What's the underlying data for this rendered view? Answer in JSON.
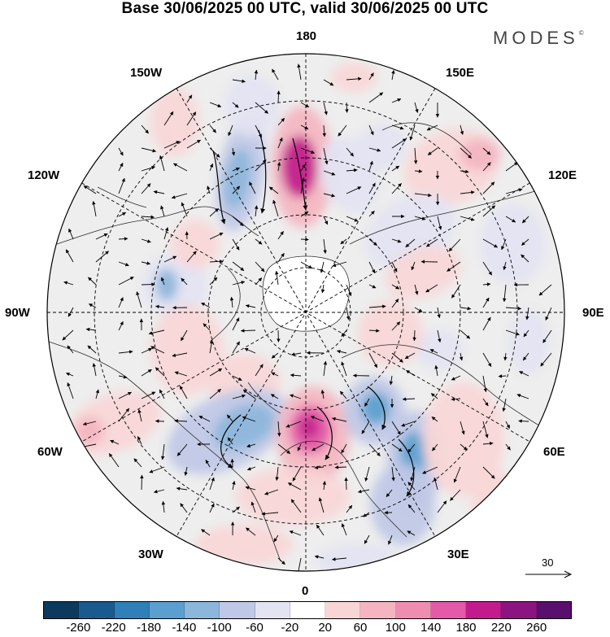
{
  "title": "Base 30/06/2025 00 UTC, valid 30/06/2025 00 UTC",
  "logo": "MODES",
  "map": {
    "projection": "north-polar-stereographic",
    "longitude_labels": {
      "top": "180",
      "bottom": "0",
      "left": "90W",
      "right": "90E",
      "upper_left_1": "150W",
      "upper_left_2": "120W",
      "lower_left_1": "60W",
      "lower_left_2": "30W",
      "upper_right_1": "150E",
      "upper_right_2": "120E",
      "lower_right_1": "60E",
      "lower_right_2": "30E"
    },
    "reference_vector": "30",
    "colors": {
      "land": "#f0f0f0",
      "ocean_inner": "#ffffff",
      "coast": "#333333"
    }
  },
  "colorbar": {
    "ticks": [
      "-260",
      "-220",
      "-180",
      "-140",
      "-100",
      "-60",
      "-20",
      "20",
      "60",
      "100",
      "140",
      "180",
      "220",
      "260"
    ],
    "colors": [
      "#0d3a5c",
      "#1a5a8f",
      "#2f7fb8",
      "#5a9fcf",
      "#8db6db",
      "#bfc8e6",
      "#e3e3f2",
      "#ffffff",
      "#f9d6d6",
      "#f4b5c0",
      "#ef8db0",
      "#e35aa8",
      "#c21c8c",
      "#8c1480",
      "#5a0e6e"
    ]
  }
}
